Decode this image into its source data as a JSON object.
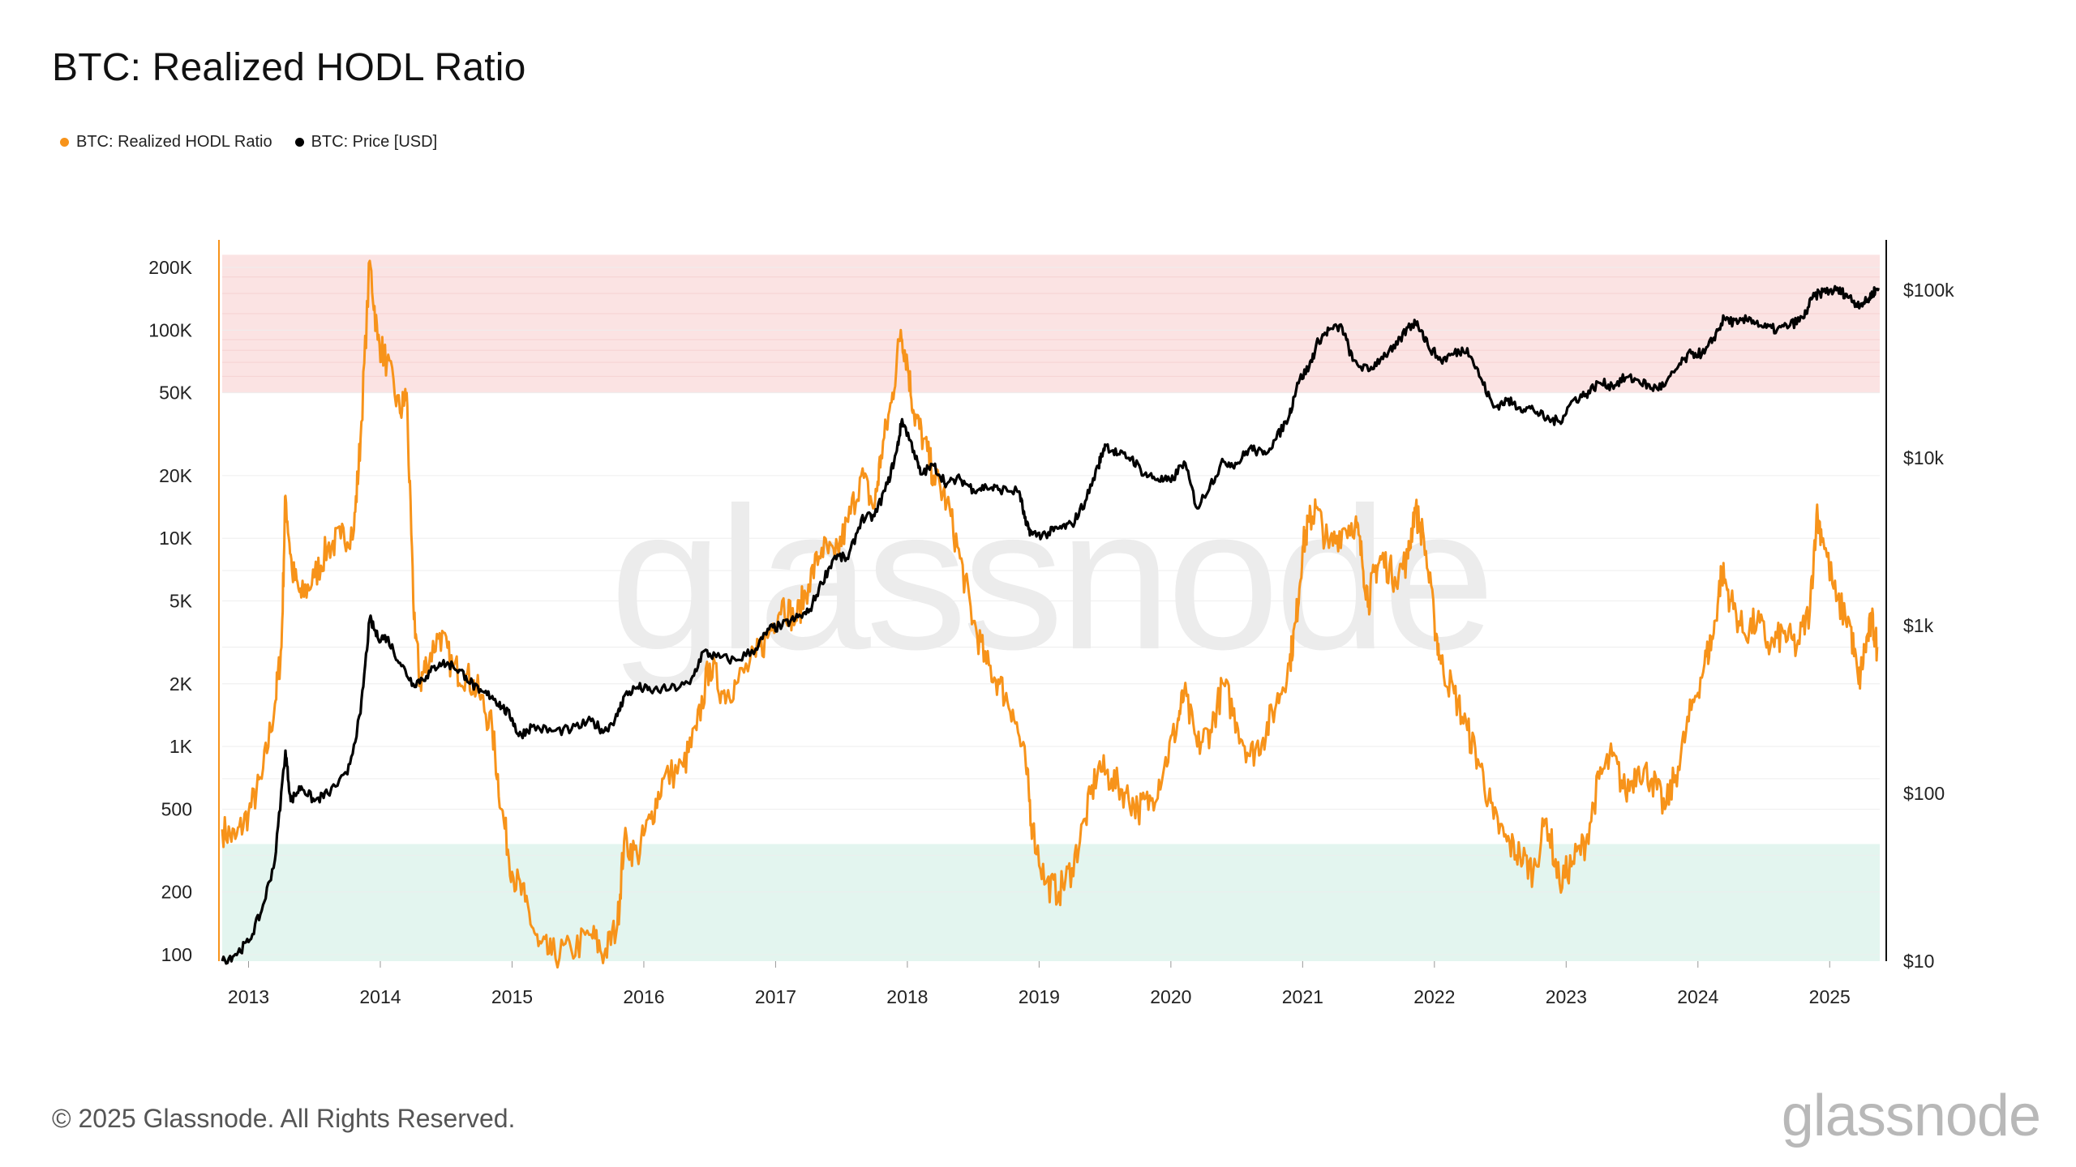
{
  "header": {
    "title": "BTC: Realized HODL Ratio"
  },
  "legend": [
    {
      "label": "BTC: Realized HODL Ratio",
      "color": "#f7931a"
    },
    {
      "label": "BTC: Price [USD]",
      "color": "#000000"
    }
  ],
  "watermark": "glassnode",
  "footer": {
    "copyright": "© 2025 Glassnode. All Rights Reserved.",
    "logo": "glassnode"
  },
  "chart_data": {
    "type": "line",
    "title": "BTC: Realized HODL Ratio",
    "x_range": [
      2012.8,
      2025.38
    ],
    "x_ticks": [
      "2013",
      "2014",
      "2015",
      "2016",
      "2017",
      "2018",
      "2019",
      "2020",
      "2021",
      "2022",
      "2023",
      "2024",
      "2025"
    ],
    "y_left": {
      "scale": "log",
      "range": [
        90,
        300000
      ],
      "ticks": [
        {
          "value": 200000,
          "label": "200K"
        },
        {
          "value": 100000,
          "label": "100K"
        },
        {
          "value": 50000,
          "label": "50K"
        },
        {
          "value": 20000,
          "label": "20K"
        },
        {
          "value": 10000,
          "label": "10K"
        },
        {
          "value": 5000,
          "label": "5K"
        },
        {
          "value": 2000,
          "label": "2K"
        },
        {
          "value": 1000,
          "label": "1K"
        },
        {
          "value": 500,
          "label": "500"
        },
        {
          "value": 200,
          "label": "200"
        },
        {
          "value": 100,
          "label": "100"
        }
      ]
    },
    "y_right": {
      "scale": "log",
      "range": [
        10,
        180000
      ],
      "ticks": [
        {
          "value": 100000,
          "label": "$100k"
        },
        {
          "value": 10000,
          "label": "$10k"
        },
        {
          "value": 1000,
          "label": "$1k"
        },
        {
          "value": 100,
          "label": "$100"
        },
        {
          "value": 10,
          "label": "$10"
        }
      ]
    },
    "bands": [
      {
        "name": "overheated-zone",
        "from": 50000,
        "to": 230000,
        "color": "#fbe3e3"
      },
      {
        "name": "undervalued-zone",
        "from": 90,
        "to": 340,
        "color": "#e3f5ef"
      }
    ],
    "series": [
      {
        "name": "BTC: Realized HODL Ratio",
        "color": "#f7931a",
        "axis": "left",
        "points": [
          [
            2012.8,
            400
          ],
          [
            2012.9,
            360
          ],
          [
            2013.0,
            480
          ],
          [
            2013.1,
            700
          ],
          [
            2013.2,
            1600
          ],
          [
            2013.25,
            3000
          ],
          [
            2013.28,
            16000
          ],
          [
            2013.33,
            7000
          ],
          [
            2013.4,
            5200
          ],
          [
            2013.5,
            6500
          ],
          [
            2013.6,
            9000
          ],
          [
            2013.7,
            10000
          ],
          [
            2013.8,
            11000
          ],
          [
            2013.85,
            30000
          ],
          [
            2013.92,
            215000
          ],
          [
            2013.98,
            90000
          ],
          [
            2014.05,
            70000
          ],
          [
            2014.15,
            40000
          ],
          [
            2014.2,
            50000
          ],
          [
            2014.25,
            5000
          ],
          [
            2014.3,
            2000
          ],
          [
            2014.35,
            2500
          ],
          [
            2014.45,
            3500
          ],
          [
            2014.55,
            2400
          ],
          [
            2014.65,
            2200
          ],
          [
            2014.75,
            1800
          ],
          [
            2014.85,
            1200
          ],
          [
            2014.92,
            500
          ],
          [
            2015.0,
            250
          ],
          [
            2015.1,
            180
          ],
          [
            2015.2,
            110
          ],
          [
            2015.3,
            100
          ],
          [
            2015.45,
            105
          ],
          [
            2015.6,
            125
          ],
          [
            2015.7,
            100
          ],
          [
            2015.8,
            140
          ],
          [
            2015.85,
            350
          ],
          [
            2015.95,
            300
          ],
          [
            2016.05,
            450
          ],
          [
            2016.15,
            700
          ],
          [
            2016.3,
            800
          ],
          [
            2016.4,
            1200
          ],
          [
            2016.5,
            2500
          ],
          [
            2016.6,
            1800
          ],
          [
            2016.7,
            2000
          ],
          [
            2016.85,
            2700
          ],
          [
            2016.95,
            3500
          ],
          [
            2017.05,
            5000
          ],
          [
            2017.15,
            4000
          ],
          [
            2017.25,
            6000
          ],
          [
            2017.35,
            9000
          ],
          [
            2017.45,
            8000
          ],
          [
            2017.55,
            12000
          ],
          [
            2017.65,
            20000
          ],
          [
            2017.75,
            14000
          ],
          [
            2017.8,
            25000
          ],
          [
            2017.88,
            45000
          ],
          [
            2017.95,
            100000
          ],
          [
            2018.0,
            70000
          ],
          [
            2018.05,
            40000
          ],
          [
            2018.12,
            30000
          ],
          [
            2018.2,
            20000
          ],
          [
            2018.3,
            15000
          ],
          [
            2018.4,
            8000
          ],
          [
            2018.5,
            4000
          ],
          [
            2018.6,
            2500
          ],
          [
            2018.7,
            2000
          ],
          [
            2018.8,
            1500
          ],
          [
            2018.9,
            800
          ],
          [
            2018.95,
            400
          ],
          [
            2019.05,
            220
          ],
          [
            2019.15,
            200
          ],
          [
            2019.25,
            260
          ],
          [
            2019.35,
            450
          ],
          [
            2019.45,
            800
          ],
          [
            2019.55,
            700
          ],
          [
            2019.65,
            600
          ],
          [
            2019.75,
            500
          ],
          [
            2019.85,
            550
          ],
          [
            2019.95,
            800
          ],
          [
            2020.05,
            1300
          ],
          [
            2020.1,
            1800
          ],
          [
            2020.2,
            1000
          ],
          [
            2020.3,
            1200
          ],
          [
            2020.4,
            2000
          ],
          [
            2020.5,
            1300
          ],
          [
            2020.6,
            900
          ],
          [
            2020.7,
            1100
          ],
          [
            2020.8,
            1600
          ],
          [
            2020.9,
            2500
          ],
          [
            2020.95,
            4000
          ],
          [
            2021.0,
            9000
          ],
          [
            2021.05,
            12000
          ],
          [
            2021.1,
            14000
          ],
          [
            2021.2,
            9000
          ],
          [
            2021.3,
            11000
          ],
          [
            2021.4,
            12000
          ],
          [
            2021.45,
            8000
          ],
          [
            2021.5,
            5000
          ],
          [
            2021.55,
            7000
          ],
          [
            2021.6,
            8000
          ],
          [
            2021.7,
            6500
          ],
          [
            2021.8,
            8000
          ],
          [
            2021.85,
            14000
          ],
          [
            2021.92,
            10000
          ],
          [
            2022.0,
            4000
          ],
          [
            2022.05,
            2500
          ],
          [
            2022.15,
            1800
          ],
          [
            2022.25,
            1200
          ],
          [
            2022.35,
            800
          ],
          [
            2022.45,
            450
          ],
          [
            2022.55,
            350
          ],
          [
            2022.65,
            300
          ],
          [
            2022.75,
            250
          ],
          [
            2022.85,
            450
          ],
          [
            2022.95,
            220
          ],
          [
            2023.05,
            280
          ],
          [
            2023.15,
            350
          ],
          [
            2023.25,
            700
          ],
          [
            2023.35,
            900
          ],
          [
            2023.45,
            600
          ],
          [
            2023.55,
            800
          ],
          [
            2023.65,
            700
          ],
          [
            2023.75,
            500
          ],
          [
            2023.85,
            800
          ],
          [
            2023.95,
            1500
          ],
          [
            2024.05,
            2500
          ],
          [
            2024.12,
            3500
          ],
          [
            2024.18,
            7000
          ],
          [
            2024.25,
            5000
          ],
          [
            2024.35,
            3500
          ],
          [
            2024.45,
            4000
          ],
          [
            2024.55,
            3000
          ],
          [
            2024.65,
            3500
          ],
          [
            2024.75,
            3000
          ],
          [
            2024.85,
            4500
          ],
          [
            2024.9,
            13000
          ],
          [
            2024.95,
            10000
          ],
          [
            2025.05,
            5000
          ],
          [
            2025.15,
            4000
          ],
          [
            2025.22,
            2000
          ],
          [
            2025.27,
            3000
          ],
          [
            2025.32,
            4000
          ],
          [
            2025.36,
            3000
          ]
        ]
      },
      {
        "name": "BTC: Price [USD]",
        "color": "#000000",
        "axis": "right",
        "points": [
          [
            2012.8,
            10
          ],
          [
            2012.9,
            11
          ],
          [
            2013.0,
            13
          ],
          [
            2013.1,
            20
          ],
          [
            2013.2,
            40
          ],
          [
            2013.28,
            180
          ],
          [
            2013.32,
            90
          ],
          [
            2013.4,
            110
          ],
          [
            2013.5,
            90
          ],
          [
            2013.6,
            100
          ],
          [
            2013.75,
            130
          ],
          [
            2013.85,
            300
          ],
          [
            2013.92,
            1100
          ],
          [
            2013.98,
            850
          ],
          [
            2014.05,
            850
          ],
          [
            2014.15,
            600
          ],
          [
            2014.25,
            450
          ],
          [
            2014.35,
            500
          ],
          [
            2014.45,
            600
          ],
          [
            2014.55,
            580
          ],
          [
            2014.65,
            500
          ],
          [
            2014.75,
            400
          ],
          [
            2014.85,
            380
          ],
          [
            2014.92,
            330
          ],
          [
            2015.0,
            280
          ],
          [
            2015.05,
            220
          ],
          [
            2015.15,
            250
          ],
          [
            2015.3,
            235
          ],
          [
            2015.45,
            240
          ],
          [
            2015.6,
            270
          ],
          [
            2015.7,
            235
          ],
          [
            2015.8,
            290
          ],
          [
            2015.85,
            380
          ],
          [
            2015.95,
            430
          ],
          [
            2016.05,
            410
          ],
          [
            2016.2,
            420
          ],
          [
            2016.35,
            450
          ],
          [
            2016.45,
            700
          ],
          [
            2016.55,
            650
          ],
          [
            2016.7,
            620
          ],
          [
            2016.85,
            730
          ],
          [
            2016.95,
            950
          ],
          [
            2017.05,
            1000
          ],
          [
            2017.15,
            1100
          ],
          [
            2017.25,
            1200
          ],
          [
            2017.35,
            1800
          ],
          [
            2017.45,
            2600
          ],
          [
            2017.55,
            2500
          ],
          [
            2017.65,
            4300
          ],
          [
            2017.75,
            4500
          ],
          [
            2017.85,
            7000
          ],
          [
            2017.92,
            11000
          ],
          [
            2017.96,
            17000
          ],
          [
            2018.05,
            11000
          ],
          [
            2018.1,
            8000
          ],
          [
            2018.2,
            9000
          ],
          [
            2018.3,
            7000
          ],
          [
            2018.4,
            7500
          ],
          [
            2018.5,
            6500
          ],
          [
            2018.6,
            6700
          ],
          [
            2018.7,
            6500
          ],
          [
            2018.85,
            6300
          ],
          [
            2018.9,
            4000
          ],
          [
            2018.95,
            3500
          ],
          [
            2019.05,
            3500
          ],
          [
            2019.15,
            3800
          ],
          [
            2019.25,
            4000
          ],
          [
            2019.35,
            5500
          ],
          [
            2019.45,
            9000
          ],
          [
            2019.5,
            12000
          ],
          [
            2019.6,
            10500
          ],
          [
            2019.7,
            10000
          ],
          [
            2019.8,
            8000
          ],
          [
            2019.9,
            7500
          ],
          [
            2020.0,
            7200
          ],
          [
            2020.1,
            9500
          ],
          [
            2020.2,
            5000
          ],
          [
            2020.3,
            7000
          ],
          [
            2020.4,
            9500
          ],
          [
            2020.5,
            9200
          ],
          [
            2020.6,
            11500
          ],
          [
            2020.7,
            10500
          ],
          [
            2020.8,
            13000
          ],
          [
            2020.9,
            18000
          ],
          [
            2020.96,
            28000
          ],
          [
            2021.05,
            35000
          ],
          [
            2021.12,
            50000
          ],
          [
            2021.2,
            58000
          ],
          [
            2021.3,
            60000
          ],
          [
            2021.38,
            38000
          ],
          [
            2021.5,
            33000
          ],
          [
            2021.6,
            40000
          ],
          [
            2021.7,
            45000
          ],
          [
            2021.8,
            60000
          ],
          [
            2021.87,
            65000
          ],
          [
            2021.95,
            47000
          ],
          [
            2022.05,
            38000
          ],
          [
            2022.15,
            42000
          ],
          [
            2022.25,
            45000
          ],
          [
            2022.35,
            30000
          ],
          [
            2022.45,
            20000
          ],
          [
            2022.55,
            22000
          ],
          [
            2022.65,
            20000
          ],
          [
            2022.75,
            19500
          ],
          [
            2022.85,
            17000
          ],
          [
            2022.95,
            16500
          ],
          [
            2023.05,
            22000
          ],
          [
            2023.15,
            24000
          ],
          [
            2023.25,
            28000
          ],
          [
            2023.35,
            27000
          ],
          [
            2023.45,
            30000
          ],
          [
            2023.55,
            29000
          ],
          [
            2023.65,
            26000
          ],
          [
            2023.75,
            27000
          ],
          [
            2023.85,
            35000
          ],
          [
            2023.95,
            42000
          ],
          [
            2024.05,
            42000
          ],
          [
            2024.12,
            52000
          ],
          [
            2024.2,
            68000
          ],
          [
            2024.3,
            63000
          ],
          [
            2024.4,
            68000
          ],
          [
            2024.5,
            60000
          ],
          [
            2024.6,
            58000
          ],
          [
            2024.7,
            62000
          ],
          [
            2024.8,
            68000
          ],
          [
            2024.87,
            90000
          ],
          [
            2024.95,
            98000
          ],
          [
            2025.05,
            100000
          ],
          [
            2025.12,
            95000
          ],
          [
            2025.2,
            83000
          ],
          [
            2025.28,
            85000
          ],
          [
            2025.33,
            97000
          ],
          [
            2025.37,
            103000
          ]
        ]
      }
    ]
  }
}
